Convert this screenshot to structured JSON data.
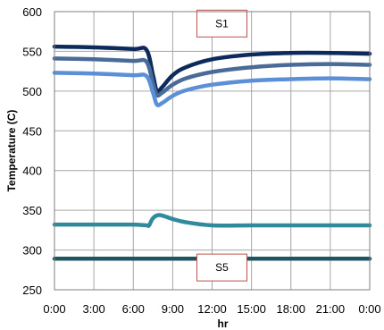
{
  "chart_data": {
    "type": "line",
    "xlabel": "hr",
    "ylabel": "Temperature (C)",
    "x_ticks": [
      "0:00",
      "3:00",
      "6:00",
      "9:00",
      "12:00",
      "15:00",
      "18:00",
      "21:00",
      "0:00"
    ],
    "xlim": [
      0,
      24
    ],
    "ylim": [
      250,
      600
    ],
    "y_ticks": [
      250,
      300,
      350,
      400,
      450,
      500,
      550,
      600
    ],
    "grid": true,
    "annotations": [
      {
        "text": "S1",
        "x": 12,
        "y": 585
      },
      {
        "text": "S5",
        "x": 12,
        "y": 278
      }
    ],
    "series": [
      {
        "color": "#0d2a5c",
        "x": [
          0,
          3,
          6,
          7,
          7.5,
          7.8,
          8.2,
          9,
          10,
          12,
          15,
          18,
          21,
          24
        ],
        "y": [
          556,
          555,
          553,
          552,
          520,
          500,
          505,
          520,
          530,
          540,
          546,
          548,
          548,
          547
        ]
      },
      {
        "color": "#4a6a98",
        "x": [
          0,
          3,
          6,
          7,
          7.5,
          7.8,
          8.2,
          9,
          10,
          12,
          15,
          18,
          21,
          24
        ],
        "y": [
          541,
          540,
          538,
          537,
          510,
          495,
          498,
          508,
          516,
          524,
          530,
          533,
          534,
          533
        ]
      },
      {
        "color": "#5b8fd8",
        "x": [
          0,
          3,
          6,
          7,
          7.5,
          7.8,
          8.2,
          9,
          10,
          12,
          15,
          18,
          21,
          24
        ],
        "y": [
          523,
          522,
          520,
          519,
          498,
          483,
          485,
          494,
          501,
          508,
          513,
          515,
          516,
          515
        ]
      },
      {
        "color": "#31899c",
        "x": [
          0,
          3,
          6,
          7,
          7.2,
          7.5,
          8,
          9,
          10,
          12,
          15,
          18,
          21,
          24
        ],
        "y": [
          332,
          332,
          332,
          331,
          331,
          340,
          344,
          339,
          335,
          331,
          331,
          331,
          331,
          331
        ]
      },
      {
        "color": "#1f5560",
        "x": [
          0,
          3,
          6,
          9,
          12,
          15,
          18,
          21,
          24
        ],
        "y": [
          289,
          289,
          289,
          289,
          289,
          289,
          289,
          289,
          289
        ]
      }
    ]
  }
}
